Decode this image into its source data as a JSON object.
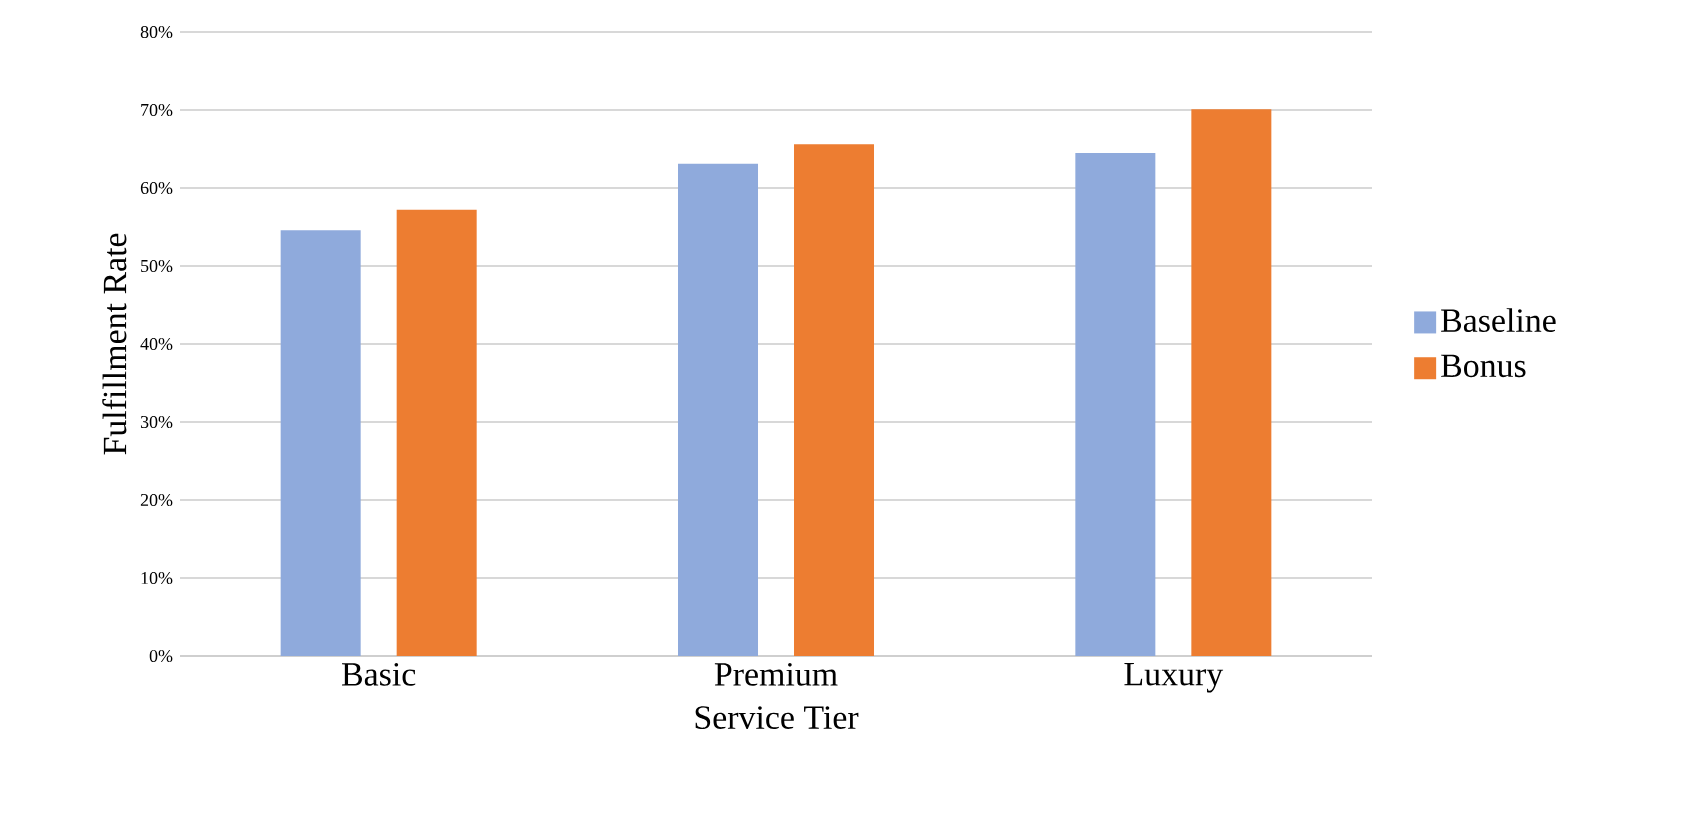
{
  "chart_data": {
    "type": "bar",
    "xlabel": "Service Tier",
    "ylabel": "Fulfillment Rate",
    "categories": [
      "Basic",
      "Premium",
      "Luxury"
    ],
    "series": [
      {
        "name": "Baseline",
        "color": "#8faadc",
        "values": [
          54.6,
          63.1,
          64.5
        ]
      },
      {
        "name": "Bonus",
        "color": "#ed7d31",
        "values": [
          57.2,
          65.6,
          70.1
        ]
      }
    ],
    "ylim": [
      0,
      80
    ],
    "yticks": [
      {
        "value": 0,
        "label": "0%"
      },
      {
        "value": 10,
        "label": "10%"
      },
      {
        "value": 20,
        "label": "20%"
      },
      {
        "value": 30,
        "label": "30%"
      },
      {
        "value": 40,
        "label": "40%"
      },
      {
        "value": 50,
        "label": "50%"
      },
      {
        "value": 60,
        "label": "60%"
      },
      {
        "value": 70,
        "label": "70%"
      },
      {
        "value": 80,
        "label": "80%"
      }
    ],
    "grid": "y",
    "legend": "right"
  }
}
